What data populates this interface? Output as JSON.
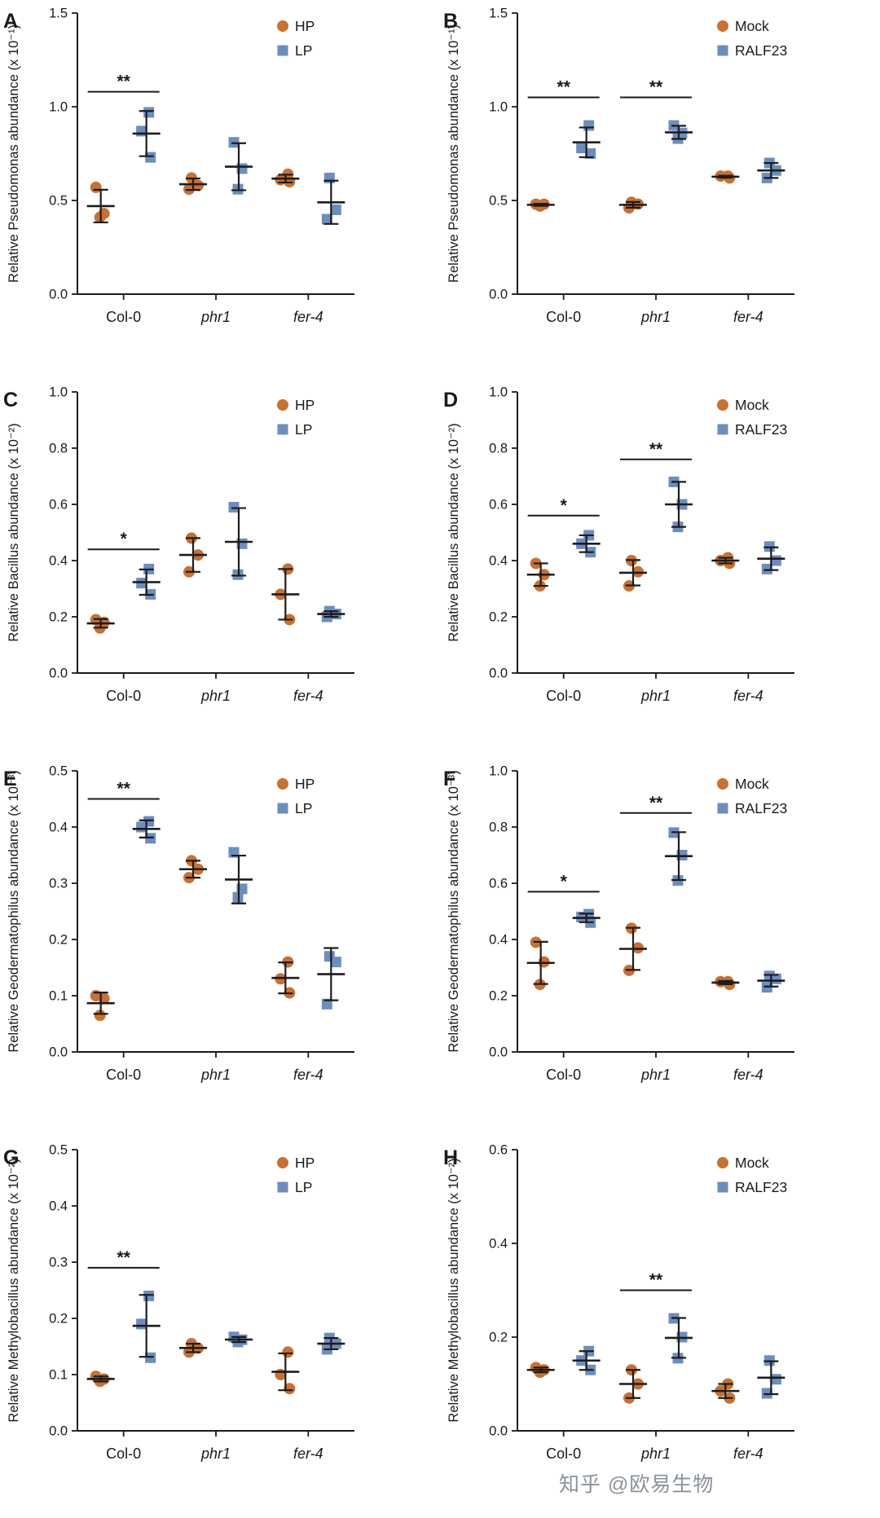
{
  "watermark": {
    "text": "知乎 @欧易生物"
  },
  "colors": {
    "series1": "#C9712F",
    "series2": "#6C8EBE",
    "axis": "#1a1a1a",
    "error": "#1c1c1c"
  },
  "chart_data": [
    {
      "letter": "A",
      "type": "scatter",
      "ylabel": "Relative Pseudomonas abundance (x 10⁻¹)",
      "ylim": [
        0.0,
        1.5
      ],
      "yticks": [
        0.0,
        0.5,
        1.0,
        1.5
      ],
      "categories": [
        {
          "label": "Col-0",
          "italic": false
        },
        {
          "label": "phr1",
          "italic": true
        },
        {
          "label": "fer-4",
          "italic": true
        }
      ],
      "series": [
        {
          "name": "HP",
          "marker": "circle",
          "color": "#C9712F",
          "values": [
            [
              0.57,
              0.43,
              0.41
            ],
            [
              0.62,
              0.58,
              0.56
            ],
            [
              0.64,
              0.61,
              0.6
            ]
          ]
        },
        {
          "name": "LP",
          "marker": "square",
          "color": "#6C8EBE",
          "values": [
            [
              0.97,
              0.87,
              0.73
            ],
            [
              0.81,
              0.67,
              0.56
            ],
            [
              0.62,
              0.45,
              0.4
            ]
          ]
        }
      ],
      "significance": [
        {
          "category": 0,
          "label": "**",
          "y": 1.08
        }
      ]
    },
    {
      "letter": "B",
      "type": "scatter",
      "ylabel": "Relative Pseudomonas abundance (x 10⁻¹)",
      "ylim": [
        0.0,
        1.5
      ],
      "yticks": [
        0.0,
        0.5,
        1.0,
        1.5
      ],
      "categories": [
        {
          "label": "Col-0",
          "italic": false
        },
        {
          "label": "phr1",
          "italic": true
        },
        {
          "label": "fer-4",
          "italic": true
        }
      ],
      "series": [
        {
          "name": "Mock",
          "marker": "circle",
          "color": "#C9712F",
          "values": [
            [
              0.48,
              0.48,
              0.47
            ],
            [
              0.49,
              0.48,
              0.46
            ],
            [
              0.63,
              0.63,
              0.62
            ]
          ]
        },
        {
          "name": "RALF23",
          "marker": "square",
          "color": "#6C8EBE",
          "values": [
            [
              0.9,
              0.78,
              0.75
            ],
            [
              0.9,
              0.86,
              0.83
            ],
            [
              0.7,
              0.66,
              0.62
            ]
          ]
        }
      ],
      "significance": [
        {
          "category": 0,
          "label": "**",
          "y": 1.05
        },
        {
          "category": 1,
          "label": "**",
          "y": 1.05
        }
      ]
    },
    {
      "letter": "C",
      "type": "scatter",
      "ylabel": "Relative Bacillus abundance (x 10⁻²)",
      "ylim": [
        0.0,
        1.0
      ],
      "yticks": [
        0.0,
        0.2,
        0.4,
        0.6,
        0.8,
        1.0
      ],
      "categories": [
        {
          "label": "Col-0",
          "italic": false
        },
        {
          "label": "phr1",
          "italic": true
        },
        {
          "label": "fer-4",
          "italic": true
        }
      ],
      "series": [
        {
          "name": "HP",
          "marker": "circle",
          "color": "#C9712F",
          "values": [
            [
              0.19,
              0.18,
              0.16
            ],
            [
              0.48,
              0.42,
              0.36
            ],
            [
              0.37,
              0.28,
              0.19
            ]
          ]
        },
        {
          "name": "LP",
          "marker": "square",
          "color": "#6C8EBE",
          "values": [
            [
              0.37,
              0.32,
              0.28
            ],
            [
              0.59,
              0.46,
              0.35
            ],
            [
              0.22,
              0.21,
              0.2
            ]
          ]
        }
      ],
      "significance": [
        {
          "category": 0,
          "label": "*",
          "y": 0.44
        }
      ]
    },
    {
      "letter": "D",
      "type": "scatter",
      "ylabel": "Relative Bacillus abundance (x 10⁻²)",
      "ylim": [
        0.0,
        1.0
      ],
      "yticks": [
        0.0,
        0.2,
        0.4,
        0.6,
        0.8,
        1.0
      ],
      "categories": [
        {
          "label": "Col-0",
          "italic": false
        },
        {
          "label": "phr1",
          "italic": true
        },
        {
          "label": "fer-4",
          "italic": true
        }
      ],
      "series": [
        {
          "name": "Mock",
          "marker": "circle",
          "color": "#C9712F",
          "values": [
            [
              0.39,
              0.35,
              0.31
            ],
            [
              0.4,
              0.36,
              0.31
            ],
            [
              0.41,
              0.4,
              0.39
            ]
          ]
        },
        {
          "name": "RALF23",
          "marker": "square",
          "color": "#6C8EBE",
          "values": [
            [
              0.49,
              0.46,
              0.43
            ],
            [
              0.68,
              0.6,
              0.52
            ],
            [
              0.45,
              0.4,
              0.37
            ]
          ]
        }
      ],
      "significance": [
        {
          "category": 0,
          "label": "*",
          "y": 0.56
        },
        {
          "category": 1,
          "label": "**",
          "y": 0.76
        }
      ]
    },
    {
      "letter": "E",
      "type": "scatter",
      "ylabel": "Relative Geodermatophilus abundance (x 10⁻³)",
      "ylim": [
        0.0,
        0.5
      ],
      "yticks": [
        0.0,
        0.1,
        0.2,
        0.3,
        0.4,
        0.5
      ],
      "categories": [
        {
          "label": "Col-0",
          "italic": false
        },
        {
          "label": "phr1",
          "italic": true
        },
        {
          "label": "fer-4",
          "italic": true
        }
      ],
      "series": [
        {
          "name": "HP",
          "marker": "circle",
          "color": "#C9712F",
          "values": [
            [
              0.1,
              0.095,
              0.065
            ],
            [
              0.34,
              0.325,
              0.31
            ],
            [
              0.16,
              0.13,
              0.105
            ]
          ]
        },
        {
          "name": "LP",
          "marker": "square",
          "color": "#6C8EBE",
          "values": [
            [
              0.41,
              0.4,
              0.38
            ],
            [
              0.355,
              0.29,
              0.275
            ],
            [
              0.17,
              0.16,
              0.085
            ]
          ]
        }
      ],
      "significance": [
        {
          "category": 0,
          "label": "**",
          "y": 0.45
        }
      ]
    },
    {
      "letter": "F",
      "type": "scatter",
      "ylabel": "Relative Geodermatophilus abundance (x 10⁻³)",
      "ylim": [
        0.0,
        1.0
      ],
      "yticks": [
        0.0,
        0.2,
        0.4,
        0.6,
        0.8,
        1.0
      ],
      "categories": [
        {
          "label": "Col-0",
          "italic": false
        },
        {
          "label": "phr1",
          "italic": true
        },
        {
          "label": "fer-4",
          "italic": true
        }
      ],
      "series": [
        {
          "name": "Mock",
          "marker": "circle",
          "color": "#C9712F",
          "values": [
            [
              0.39,
              0.32,
              0.24
            ],
            [
              0.44,
              0.37,
              0.29
            ],
            [
              0.25,
              0.25,
              0.24
            ]
          ]
        },
        {
          "name": "RALF23",
          "marker": "square",
          "color": "#6C8EBE",
          "values": [
            [
              0.49,
              0.48,
              0.46
            ],
            [
              0.78,
              0.7,
              0.61
            ],
            [
              0.27,
              0.26,
              0.23
            ]
          ]
        }
      ],
      "significance": [
        {
          "category": 0,
          "label": "*",
          "y": 0.57
        },
        {
          "category": 1,
          "label": "**",
          "y": 0.85
        }
      ]
    },
    {
      "letter": "G",
      "type": "scatter",
      "ylabel": "Relative Methylobacillus abundance (x 10⁻²)",
      "ylim": [
        0.0,
        0.5
      ],
      "yticks": [
        0.0,
        0.1,
        0.2,
        0.3,
        0.4,
        0.5
      ],
      "categories": [
        {
          "label": "Col-0",
          "italic": false
        },
        {
          "label": "phr1",
          "italic": true
        },
        {
          "label": "fer-4",
          "italic": true
        }
      ],
      "series": [
        {
          "name": "HP",
          "marker": "circle",
          "color": "#C9712F",
          "values": [
            [
              0.097,
              0.092,
              0.088
            ],
            [
              0.155,
              0.147,
              0.14
            ],
            [
              0.14,
              0.1,
              0.075
            ]
          ]
        },
        {
          "name": "LP",
          "marker": "square",
          "color": "#6C8EBE",
          "values": [
            [
              0.24,
              0.19,
              0.13
            ],
            [
              0.167,
              0.162,
              0.158
            ],
            [
              0.165,
              0.155,
              0.145
            ]
          ]
        }
      ],
      "significance": [
        {
          "category": 0,
          "label": "**",
          "y": 0.29
        }
      ]
    },
    {
      "letter": "H",
      "type": "scatter",
      "ylabel": "Relative Methylobacillus abundance (x 10⁻²)",
      "ylim": [
        0.0,
        0.6
      ],
      "yticks": [
        0.0,
        0.2,
        0.4,
        0.6
      ],
      "categories": [
        {
          "label": "Col-0",
          "italic": false
        },
        {
          "label": "phr1",
          "italic": true
        },
        {
          "label": "fer-4",
          "italic": true
        }
      ],
      "series": [
        {
          "name": "Mock",
          "marker": "circle",
          "color": "#C9712F",
          "values": [
            [
              0.135,
              0.13,
              0.125
            ],
            [
              0.13,
              0.1,
              0.07
            ],
            [
              0.1,
              0.085,
              0.07
            ]
          ]
        },
        {
          "name": "RALF23",
          "marker": "square",
          "color": "#6C8EBE",
          "values": [
            [
              0.17,
              0.15,
              0.13
            ],
            [
              0.24,
              0.2,
              0.155
            ],
            [
              0.15,
              0.11,
              0.08
            ]
          ]
        }
      ],
      "significance": [
        {
          "category": 1,
          "label": "**",
          "y": 0.3
        }
      ]
    }
  ]
}
